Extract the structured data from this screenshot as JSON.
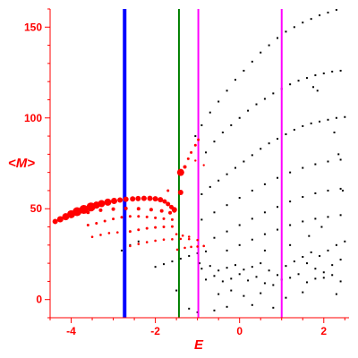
{
  "chart_data": {
    "type": "scatter",
    "xlabel": "E",
    "ylabel": "<M>",
    "xlim": [
      -4.5,
      2.6
    ],
    "ylim": [
      -10,
      160
    ],
    "x_ticks": [
      -4,
      -2,
      0,
      2
    ],
    "y_ticks": [
      0,
      50,
      100,
      150
    ],
    "x_tick_labels": [
      "-4",
      "-2",
      "0",
      "2"
    ],
    "y_tick_labels": [
      "0",
      "50",
      "100",
      "150"
    ],
    "grid": false,
    "legend": "none",
    "colors": {
      "axis": "#ff0000",
      "ticks": "#ff0000",
      "highlighted_points": "#ff0000",
      "other_points": "#000000",
      "marker_line_1": "#0000ff",
      "marker_line_2": "#008000",
      "marker_lines_3": "#ff00ff"
    },
    "vertical_lines": [
      {
        "x": -2.73,
        "color": "#0000ff",
        "width": "thick"
      },
      {
        "x": -1.44,
        "color": "#008000",
        "width": "normal"
      },
      {
        "x": -0.98,
        "color": "#ff00ff",
        "width": "normal"
      },
      {
        "x": 1.0,
        "color": "#ff00ff",
        "width": "normal"
      }
    ],
    "series": [
      {
        "color": "#ff0000",
        "points": [
          [
            -4.38,
            43.0,
            3
          ],
          [
            -4.26,
            44.2,
            3.5
          ],
          [
            -4.13,
            45.6,
            4
          ],
          [
            -4.0,
            47.0,
            4.5
          ],
          [
            -3.86,
            48.4,
            5
          ],
          [
            -3.7,
            49.6,
            5
          ],
          [
            -3.53,
            51.0,
            5
          ],
          [
            -3.4,
            52.0,
            4
          ],
          [
            -3.28,
            52.8,
            4
          ],
          [
            -3.13,
            53.6,
            4
          ],
          [
            -2.98,
            54.3,
            3.5
          ],
          [
            -2.84,
            54.8,
            3
          ],
          [
            -2.7,
            55.2,
            3
          ],
          [
            -2.54,
            55.4,
            3
          ],
          [
            -2.41,
            55.6,
            3
          ],
          [
            -2.27,
            55.7,
            3
          ],
          [
            -2.13,
            55.7,
            3
          ],
          [
            -2.0,
            55.5,
            3
          ],
          [
            -1.88,
            55.0,
            3
          ],
          [
            -1.78,
            54.0,
            2.5
          ],
          [
            -1.7,
            52.6,
            2.5
          ],
          [
            -1.62,
            50.9,
            2.5
          ],
          [
            -1.55,
            49.0,
            2.5
          ],
          [
            -3.6,
            48.0,
            2
          ],
          [
            -3.3,
            49.2,
            2
          ],
          [
            -3.0,
            49.8,
            2
          ],
          [
            -2.7,
            50.2,
            2
          ],
          [
            -2.4,
            50.0,
            2
          ],
          [
            -2.1,
            49.5,
            2
          ],
          [
            -1.85,
            48.8,
            2
          ],
          [
            -1.65,
            47.8,
            2
          ],
          [
            -3.6,
            41.0,
            1.5
          ],
          [
            -3.4,
            42.0,
            1.5
          ],
          [
            -3.2,
            43.2,
            1.5
          ],
          [
            -3.0,
            44.4,
            1.5
          ],
          [
            -2.8,
            45.3,
            1.5
          ],
          [
            -2.6,
            45.8,
            1.5
          ],
          [
            -2.4,
            45.8,
            1.5
          ],
          [
            -2.2,
            45.5,
            1.5
          ],
          [
            -2.0,
            45.0,
            1.5
          ],
          [
            -1.8,
            44.5,
            1.5
          ],
          [
            -1.6,
            44.0,
            1.5
          ],
          [
            -2.6,
            37.5,
            1.5
          ],
          [
            -2.4,
            38.4,
            1.5
          ],
          [
            -2.2,
            39.2,
            1.5
          ],
          [
            -2.0,
            39.7,
            1.5
          ],
          [
            -1.8,
            40.0,
            1.5
          ],
          [
            -1.6,
            40.2,
            1.5
          ],
          [
            -3.5,
            34.5,
            1.3
          ],
          [
            -3.3,
            35.6,
            1.3
          ],
          [
            -3.1,
            36.6,
            1.3
          ],
          [
            -2.9,
            37.0,
            1.3
          ],
          [
            -2.6,
            29.5,
            1.3
          ],
          [
            -2.4,
            30.6,
            1.3
          ],
          [
            -2.2,
            31.6,
            1.3
          ],
          [
            -2.0,
            32.4,
            1.3
          ],
          [
            -1.8,
            33.0,
            1.3
          ],
          [
            -1.6,
            33.2,
            1.3
          ],
          [
            -1.4,
            33.4,
            1.3
          ],
          [
            -1.2,
            33.3,
            1.3
          ],
          [
            -1.0,
            32.8,
            1.3
          ],
          [
            -1.5,
            36.0,
            1.3
          ],
          [
            -1.35,
            35.2,
            1.3
          ],
          [
            -1.2,
            34.6,
            1.3
          ],
          [
            -1.48,
            27.5,
            1.3
          ],
          [
            -1.3,
            28.5,
            1.3
          ],
          [
            -1.15,
            29.0,
            1.3
          ],
          [
            -1.0,
            29.2,
            1.3
          ],
          [
            -0.85,
            29.5,
            1.3
          ],
          [
            -1.4,
            70.0,
            4
          ],
          [
            -1.3,
            73.0,
            2
          ],
          [
            -1.15,
            81.0,
            1.5
          ],
          [
            -1.05,
            85.0,
            1.5
          ],
          [
            -0.98,
            88.0,
            1.5
          ],
          [
            -1.22,
            77.5,
            1.5
          ],
          [
            -1.4,
            59.0,
            3
          ],
          [
            -1.55,
            49.5,
            3
          ],
          [
            -1.7,
            60.0,
            1.5
          ],
          [
            -1.05,
            76.5,
            1.2
          ],
          [
            -0.85,
            74.0,
            1.2
          ]
        ]
      },
      {
        "color": "#000000",
        "points": [
          [
            -1.05,
            90.0
          ],
          [
            -0.9,
            96.0
          ],
          [
            -0.7,
            103.0
          ],
          [
            -0.5,
            109.0
          ],
          [
            -0.3,
            115.0
          ],
          [
            -0.1,
            121.0
          ],
          [
            0.1,
            126.0
          ],
          [
            0.3,
            131.0
          ],
          [
            0.5,
            136.0
          ],
          [
            0.7,
            140.0
          ],
          [
            0.9,
            144.0
          ],
          [
            1.1,
            147.5
          ],
          [
            1.3,
            150.0
          ],
          [
            1.5,
            152.5
          ],
          [
            1.7,
            154.5
          ],
          [
            1.9,
            156.5
          ],
          [
            2.1,
            158.0
          ],
          [
            2.3,
            159.5
          ],
          [
            2.5,
            161.0
          ],
          [
            -0.8,
            81.0
          ],
          [
            -0.6,
            87.0
          ],
          [
            -0.4,
            92.0
          ],
          [
            -0.2,
            96.0
          ],
          [
            0.0,
            100.0
          ],
          [
            0.2,
            104.0
          ],
          [
            0.4,
            107.5
          ],
          [
            0.6,
            110.5
          ],
          [
            0.8,
            113.5
          ],
          [
            1.0,
            116.0
          ],
          [
            1.2,
            118.5
          ],
          [
            1.4,
            120.5
          ],
          [
            1.6,
            122.0
          ],
          [
            1.8,
            123.5
          ],
          [
            2.0,
            124.5
          ],
          [
            2.2,
            125.5
          ],
          [
            2.4,
            126.0
          ],
          [
            1.85,
            115.0
          ],
          [
            1.75,
            117.0
          ],
          [
            -0.9,
            58.0
          ],
          [
            -0.7,
            62.0
          ],
          [
            -0.5,
            65.5
          ],
          [
            -0.3,
            69.0
          ],
          [
            -0.1,
            72.5
          ],
          [
            0.1,
            76.0
          ],
          [
            0.3,
            79.5
          ],
          [
            0.5,
            83.0
          ],
          [
            0.7,
            86.0
          ],
          [
            0.9,
            88.5
          ],
          [
            1.1,
            91.0
          ],
          [
            1.3,
            93.5
          ],
          [
            1.5,
            95.5
          ],
          [
            1.7,
            97.0
          ],
          [
            1.9,
            98.0
          ],
          [
            2.1,
            99.0
          ],
          [
            2.3,
            100.0
          ],
          [
            2.5,
            100.5
          ],
          [
            -0.9,
            44.0
          ],
          [
            -0.6,
            48.0
          ],
          [
            -0.3,
            52.0
          ],
          [
            0.0,
            56.0
          ],
          [
            0.3,
            60.0
          ],
          [
            0.6,
            63.5
          ],
          [
            0.9,
            67.0
          ],
          [
            1.2,
            70.0
          ],
          [
            1.5,
            72.5
          ],
          [
            1.8,
            74.5
          ],
          [
            2.1,
            76.0
          ],
          [
            2.4,
            77.0
          ],
          [
            -0.6,
            34.0
          ],
          [
            -0.3,
            37.5
          ],
          [
            0.0,
            41.0
          ],
          [
            0.3,
            44.5
          ],
          [
            0.6,
            48.0
          ],
          [
            0.9,
            51.0
          ],
          [
            1.2,
            54.0
          ],
          [
            1.5,
            56.5
          ],
          [
            1.8,
            58.5
          ],
          [
            2.1,
            60.0
          ],
          [
            2.4,
            61.0
          ],
          [
            -0.3,
            27.0
          ],
          [
            0.0,
            30.0
          ],
          [
            0.3,
            33.0
          ],
          [
            0.6,
            36.0
          ],
          [
            0.9,
            38.5
          ],
          [
            1.2,
            41.0
          ],
          [
            1.5,
            43.0
          ],
          [
            1.8,
            44.5
          ],
          [
            2.1,
            45.5
          ],
          [
            2.4,
            46.5
          ],
          [
            -2.0,
            18.0
          ],
          [
            -1.8,
            19.5
          ],
          [
            -1.6,
            21.0
          ],
          [
            -1.4,
            22.5
          ],
          [
            -1.2,
            24.0
          ],
          [
            -1.0,
            25.5
          ],
          [
            -0.8,
            26.5
          ],
          [
            -2.8,
            27.0
          ],
          [
            -2.6,
            30.0
          ],
          [
            -2.4,
            32.0
          ],
          [
            -0.9,
            17.0
          ],
          [
            -0.7,
            18.5
          ],
          [
            -0.5,
            16.0
          ],
          [
            -0.3,
            17.5
          ],
          [
            -0.1,
            19.0
          ],
          [
            0.1,
            16.5
          ],
          [
            0.3,
            18.0
          ],
          [
            0.5,
            20.0
          ],
          [
            0.7,
            16.0
          ],
          [
            0.9,
            13.5
          ],
          [
            1.1,
            18.5
          ],
          [
            1.3,
            21.0
          ],
          [
            1.5,
            23.5
          ],
          [
            1.7,
            26.0
          ],
          [
            1.9,
            24.0
          ],
          [
            2.1,
            27.0
          ],
          [
            2.3,
            30.0
          ],
          [
            2.5,
            32.0
          ],
          [
            1.6,
            20.0
          ],
          [
            1.8,
            17.0
          ],
          [
            2.0,
            15.0
          ],
          [
            2.2,
            19.0
          ],
          [
            2.4,
            22.0
          ],
          [
            -0.8,
            11.0
          ],
          [
            -0.6,
            13.0
          ],
          [
            -0.4,
            10.0
          ],
          [
            -0.2,
            11.5
          ],
          [
            0.0,
            14.0
          ],
          [
            0.2,
            10.5
          ],
          [
            0.4,
            12.5
          ],
          [
            0.6,
            9.0
          ],
          [
            0.8,
            8.0
          ],
          [
            1.0,
            11.0
          ],
          [
            1.2,
            12.0
          ],
          [
            1.4,
            14.0
          ],
          [
            1.6,
            9.5
          ],
          [
            1.8,
            11.5
          ],
          [
            2.0,
            12.0
          ],
          [
            2.2,
            13.5
          ],
          [
            2.4,
            10.0
          ],
          [
            -0.5,
            3.0
          ],
          [
            -0.2,
            5.0
          ],
          [
            0.1,
            2.0
          ],
          [
            0.5,
            3.5
          ],
          [
            1.1,
            1.0
          ],
          [
            1.5,
            4.0
          ],
          [
            2.3,
            3.0
          ],
          [
            -1.2,
            -5.0
          ],
          [
            -1.0,
            -7.0
          ],
          [
            -0.6,
            -6.0
          ],
          [
            -0.3,
            -4.0
          ],
          [
            0.3,
            -3.0
          ],
          [
            0.8,
            -4.5
          ],
          [
            -1.5,
            5.0
          ],
          [
            -0.95,
            20.0
          ],
          [
            0.6,
            27.0
          ],
          [
            1.2,
            30.0
          ],
          [
            2.45,
            60.0
          ],
          [
            2.35,
            80.0
          ],
          [
            2.25,
            92.0
          ],
          [
            1.65,
            35.0
          ],
          [
            1.95,
            40.0
          ]
        ]
      }
    ]
  }
}
